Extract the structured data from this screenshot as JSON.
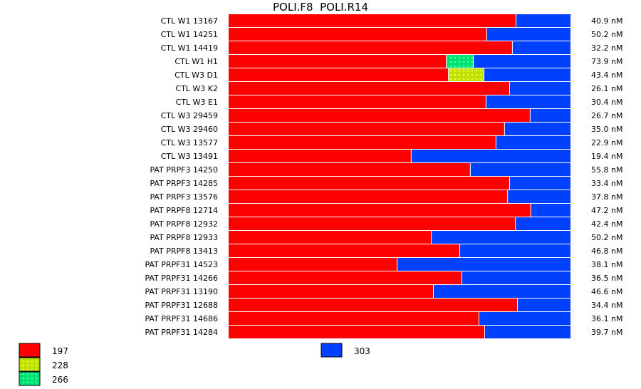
{
  "chart_data": {
    "type": "bar",
    "orientation": "horizontal-stacked-percent",
    "title": "POLI.F8  POLI.R14",
    "series": [
      {
        "name": "197",
        "color": "#ff0000",
        "pattern": "solid"
      },
      {
        "name": "228",
        "color": "#c0e000",
        "pattern": "dots"
      },
      {
        "name": "266",
        "color": "#00e070",
        "pattern": "dots"
      },
      {
        "name": "303",
        "color": "#0040ff",
        "pattern": "solid"
      }
    ],
    "rows": [
      {
        "label": "CTL W1 13167",
        "values": [
          84.2,
          0,
          0,
          15.8
        ],
        "conc": "40.9 nM"
      },
      {
        "label": "CTL W1 14251",
        "values": [
          75.6,
          0,
          0,
          24.4
        ],
        "conc": "50.2 nM"
      },
      {
        "label": "CTL W1 14419",
        "values": [
          83.1,
          0,
          0,
          16.9
        ],
        "conc": "32.2 nM"
      },
      {
        "label": "CTL W1 H1",
        "values": [
          63.8,
          0,
          7.9,
          28.3
        ],
        "conc": "73.9 nM"
      },
      {
        "label": "CTL W3 D1",
        "values": [
          64.4,
          10.4,
          0,
          25.2
        ],
        "conc": "43.4 nM"
      },
      {
        "label": "CTL W3 K2",
        "values": [
          82.3,
          0,
          0,
          17.7
        ],
        "conc": "26.1 nM"
      },
      {
        "label": "CTL W3 E1",
        "values": [
          75.4,
          0,
          0,
          24.6
        ],
        "conc": "30.4 nM"
      },
      {
        "label": "CTL W3 29459",
        "values": [
          88.3,
          0,
          0,
          11.7
        ],
        "conc": "26.7 nM"
      },
      {
        "label": "CTL W3 29460",
        "values": [
          80.8,
          0,
          0,
          19.2
        ],
        "conc": "35.0 nM"
      },
      {
        "label": "CTL W3 13577",
        "values": [
          78.3,
          0,
          0,
          21.7
        ],
        "conc": "22.9 nM"
      },
      {
        "label": "CTL W3 13491",
        "values": [
          53.5,
          0,
          0,
          46.5
        ],
        "conc": "19.4 nM"
      },
      {
        "label": "PAT PRPF3 14250",
        "values": [
          70.8,
          0,
          0,
          29.2
        ],
        "conc": "55.8 nM"
      },
      {
        "label": "PAT PRPF3 14285",
        "values": [
          82.3,
          0,
          0,
          17.7
        ],
        "conc": "33.4 nM"
      },
      {
        "label": "PAT PRPF3 13576",
        "values": [
          81.7,
          0,
          0,
          18.3
        ],
        "conc": "37.8 nM"
      },
      {
        "label": "PAT PRPF8 12714",
        "values": [
          88.5,
          0,
          0,
          11.5
        ],
        "conc": "47.2 nM"
      },
      {
        "label": "PAT PRPF8 12932",
        "values": [
          84.0,
          0,
          0,
          16.0
        ],
        "conc": "42.4 nM"
      },
      {
        "label": "PAT PRPF8 12933",
        "values": [
          59.4,
          0,
          0,
          40.6
        ],
        "conc": "50.2 nM"
      },
      {
        "label": "PAT PRPF8 13413",
        "values": [
          67.7,
          0,
          0,
          32.3
        ],
        "conc": "46.8 nM"
      },
      {
        "label": "PAT PRPF31 14523",
        "values": [
          49.4,
          0,
          0,
          50.6
        ],
        "conc": "38.1 nM"
      },
      {
        "label": "PAT PRPF31 14266",
        "values": [
          68.3,
          0,
          0,
          31.7
        ],
        "conc": "36.5 nM"
      },
      {
        "label": "PAT PRPF31 13190",
        "values": [
          60.0,
          0,
          0,
          40.0
        ],
        "conc": "46.6 nM"
      },
      {
        "label": "PAT PRPF31 12688",
        "values": [
          84.6,
          0,
          0,
          15.4
        ],
        "conc": "34.4 nM"
      },
      {
        "label": "PAT PRPF31 14686",
        "values": [
          73.3,
          0,
          0,
          26.7
        ],
        "conc": "36.1 nM"
      },
      {
        "label": "PAT PRPF31 14284",
        "values": [
          75.0,
          0,
          0,
          25.0
        ],
        "conc": "39.7 nM"
      }
    ],
    "xlim": [
      0,
      100
    ],
    "legend": "bottom"
  }
}
